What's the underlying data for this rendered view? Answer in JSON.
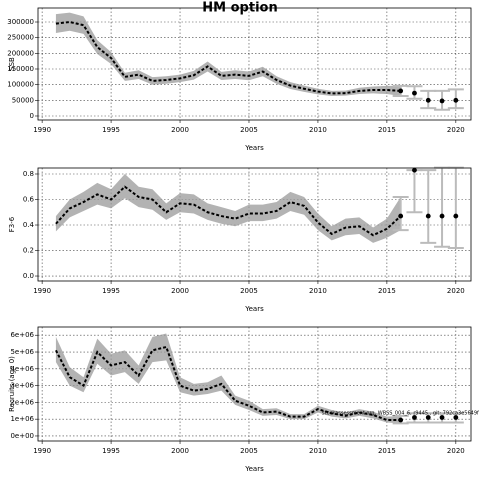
{
  "chart_data": [
    {
      "type": "line",
      "title": "HM option",
      "y_label": "SSB",
      "x_label": "Years",
      "xlim": [
        1989.7,
        2021.1
      ],
      "xticks": [
        1990,
        1995,
        2000,
        2005,
        2010,
        2015,
        2020
      ],
      "ylim": [
        -12800,
        344700
      ],
      "yticks": [
        0,
        50000,
        100000,
        150000,
        200000,
        250000,
        300000
      ],
      "grid": true,
      "line_color": "#000000",
      "band_color": "#999999",
      "x": [
        1991,
        1992,
        1993,
        1994,
        1995,
        1996,
        1997,
        1998,
        1999,
        2000,
        2001,
        2002,
        2003,
        2004,
        2005,
        2006,
        2007,
        2008,
        2009,
        2010,
        2011,
        2012,
        2013,
        2014,
        2015,
        2016
      ],
      "values": [
        295000,
        300000,
        290000,
        220000,
        185000,
        125000,
        132000,
        112000,
        115000,
        120000,
        130000,
        158000,
        128000,
        132000,
        128000,
        142000,
        115000,
        97000,
        87000,
        78000,
        72000,
        73000,
        80000,
        83000,
        83000,
        80000
      ],
      "lower": [
        265000,
        272000,
        262000,
        198000,
        166000,
        112000,
        118000,
        100000,
        103000,
        108000,
        116000,
        142000,
        115000,
        118000,
        114000,
        127000,
        103000,
        86000,
        77000,
        69000,
        64000,
        65000,
        70000,
        72000,
        70000,
        64000
      ],
      "upper": [
        325000,
        330000,
        318000,
        242000,
        204000,
        138000,
        146000,
        124000,
        127000,
        132000,
        144000,
        174000,
        141000,
        146000,
        142000,
        157000,
        127000,
        108000,
        97000,
        87000,
        80000,
        81000,
        90000,
        94000,
        96000,
        96000
      ],
      "projection": {
        "color": "#bbbbbb",
        "x": [
          2016,
          2017,
          2018,
          2019,
          2020
        ],
        "values": [
          80000,
          73000,
          50000,
          48000,
          50000
        ],
        "lower": [
          64000,
          55000,
          25000,
          20000,
          25000
        ],
        "upper": [
          96000,
          95000,
          80000,
          80000,
          85000
        ]
      }
    },
    {
      "type": "line",
      "y_label": "F3-6",
      "x_label": "Years",
      "xlim": [
        1989.7,
        2021.1
      ],
      "xticks": [
        1990,
        1995,
        2000,
        2005,
        2010,
        2015,
        2020
      ],
      "ylim": [
        -0.039,
        0.847
      ],
      "yticks": [
        {
          "value": 0,
          "label": "0.0"
        },
        0.2,
        0.4,
        0.6,
        0.8
      ],
      "grid": true,
      "line_color": "#000000",
      "band_color": "#999999",
      "x": [
        1991,
        1992,
        1993,
        1994,
        1995,
        1996,
        1997,
        1998,
        1999,
        2000,
        2001,
        2002,
        2003,
        2004,
        2005,
        2006,
        2007,
        2008,
        2009,
        2010,
        2011,
        2012,
        2013,
        2014,
        2015,
        2016
      ],
      "values": [
        0.41,
        0.53,
        0.58,
        0.64,
        0.6,
        0.7,
        0.62,
        0.6,
        0.5,
        0.57,
        0.56,
        0.5,
        0.47,
        0.45,
        0.49,
        0.49,
        0.51,
        0.58,
        0.55,
        0.42,
        0.33,
        0.38,
        0.39,
        0.32,
        0.37,
        0.47
      ],
      "lower": [
        0.35,
        0.46,
        0.51,
        0.56,
        0.53,
        0.61,
        0.54,
        0.52,
        0.44,
        0.5,
        0.49,
        0.44,
        0.41,
        0.39,
        0.43,
        0.43,
        0.45,
        0.51,
        0.48,
        0.36,
        0.28,
        0.32,
        0.33,
        0.26,
        0.3,
        0.36
      ],
      "upper": [
        0.47,
        0.6,
        0.66,
        0.73,
        0.68,
        0.8,
        0.7,
        0.68,
        0.57,
        0.65,
        0.64,
        0.57,
        0.54,
        0.51,
        0.56,
        0.56,
        0.58,
        0.66,
        0.62,
        0.49,
        0.39,
        0.45,
        0.46,
        0.38,
        0.45,
        0.62
      ],
      "projection": {
        "color": "#bbbbbb",
        "x": [
          2016,
          2017,
          2018,
          2019,
          2020
        ],
        "values": [
          0.47,
          0.83,
          0.47,
          0.47,
          0.47
        ],
        "lower": [
          0.36,
          0.5,
          0.26,
          0.23,
          0.22
        ],
        "upper": [
          0.62,
          0.83,
          0.83,
          0.85,
          0.85
        ]
      }
    },
    {
      "type": "line",
      "y_label": "Recruits (age 0)",
      "x_label": "Years",
      "annotation": "stockassessment.org, WBSS_004_6, r9445 , git: 792ca3e5649f",
      "xlim": [
        1989.7,
        2021.1
      ],
      "xticks": [
        1990,
        1995,
        2000,
        2005,
        2010,
        2015,
        2020
      ],
      "ylim": [
        -300000,
        6490000
      ],
      "yticks": [
        {
          "value": 0,
          "label": "0e+00"
        },
        {
          "value": 1000000,
          "label": "1e+06"
        },
        {
          "value": 2000000,
          "label": "2e+06"
        },
        {
          "value": 3000000,
          "label": "3e+06"
        },
        {
          "value": 4000000,
          "label": "4e+06"
        },
        {
          "value": 5000000,
          "label": "5e+06"
        },
        {
          "value": 6000000,
          "label": "6e+06"
        }
      ],
      "grid": true,
      "line_color": "#000000",
      "band_color": "#999999",
      "x": [
        1991,
        1992,
        1993,
        1994,
        1995,
        1996,
        1997,
        1998,
        1999,
        2000,
        2001,
        2002,
        2003,
        2004,
        2005,
        2006,
        2007,
        2008,
        2009,
        2010,
        2011,
        2012,
        2013,
        2014,
        2015,
        2016
      ],
      "values": [
        5100000,
        3500000,
        3000000,
        5000000,
        4200000,
        4400000,
        3600000,
        5100000,
        5300000,
        3000000,
        2700000,
        2800000,
        3100000,
        2100000,
        1800000,
        1400000,
        1450000,
        1150000,
        1150000,
        1600000,
        1350000,
        1200000,
        1400000,
        1250000,
        950000,
        950000
      ],
      "lower": [
        4400000,
        3000000,
        2600000,
        4300000,
        3600000,
        3800000,
        3100000,
        4400000,
        4500000,
        2600000,
        2400000,
        2500000,
        2700000,
        1850000,
        1550000,
        1200000,
        1250000,
        1000000,
        1000000,
        1400000,
        1150000,
        1050000,
        1200000,
        1050000,
        800000,
        750000
      ],
      "upper": [
        5900000,
        4100000,
        3500000,
        5800000,
        4900000,
        5100000,
        4200000,
        5900000,
        6100000,
        3500000,
        3100000,
        3200000,
        3600000,
        2400000,
        2100000,
        1600000,
        1650000,
        1300000,
        1300000,
        1800000,
        1550000,
        1400000,
        1600000,
        1450000,
        1150000,
        1200000
      ],
      "projection": {
        "color": "#bbbbbb",
        "x": [
          2016,
          2017,
          2018,
          2019,
          2020
        ],
        "values": [
          950000,
          1100000,
          1100000,
          1100000,
          1100000
        ],
        "lower": [
          750000,
          800000,
          800000,
          800000,
          800000
        ],
        "upper": [
          1200000,
          1350000,
          1350000,
          1350000,
          1350000
        ]
      }
    }
  ]
}
